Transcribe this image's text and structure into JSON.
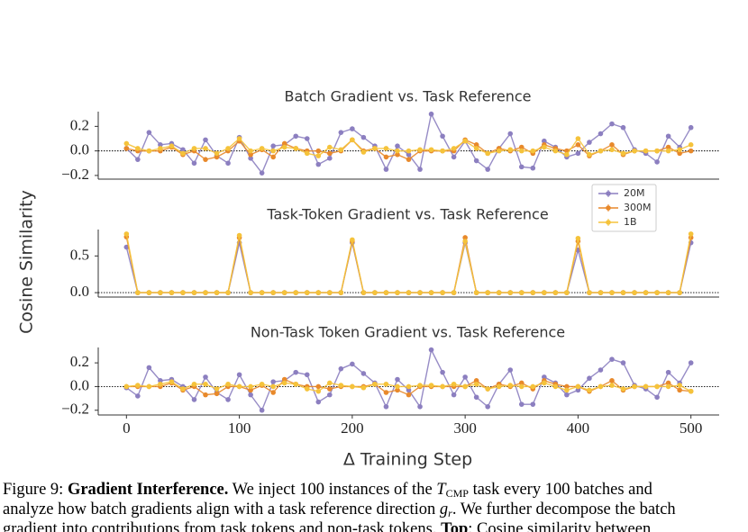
{
  "chart_data": [
    {
      "type": "line",
      "title": "Batch Gradient vs. Task Reference",
      "x": [
        0,
        10,
        20,
        30,
        40,
        50,
        60,
        70,
        80,
        90,
        100,
        110,
        120,
        130,
        140,
        150,
        160,
        170,
        180,
        190,
        200,
        210,
        220,
        230,
        240,
        250,
        260,
        270,
        280,
        290,
        300,
        310,
        320,
        330,
        340,
        350,
        360,
        370,
        380,
        390,
        400,
        410,
        420,
        430,
        440,
        450,
        460,
        470,
        480,
        490,
        500
      ],
      "series": [
        {
          "name": "20M",
          "color": "#8c7fc0",
          "values": [
            0.02,
            -0.07,
            0.15,
            0.05,
            0.06,
            0.01,
            -0.1,
            0.09,
            -0.04,
            -0.1,
            0.11,
            -0.06,
            -0.18,
            0.04,
            0.05,
            0.12,
            0.1,
            -0.11,
            -0.06,
            0.15,
            0.18,
            0.11,
            0.04,
            -0.15,
            0.04,
            -0.03,
            -0.15,
            0.3,
            0.12,
            -0.05,
            0.08,
            -0.08,
            -0.15,
            0.02,
            0.14,
            -0.13,
            -0.14,
            0.08,
            0.03,
            -0.05,
            -0.02,
            0.07,
            0.14,
            0.22,
            0.19,
            0.01,
            -0.02,
            -0.09,
            0.12,
            0.03,
            0.19
          ]
        },
        {
          "name": "300M",
          "color": "#e8892b",
          "values": [
            0.02,
            0,
            0,
            0,
            0.03,
            -0.03,
            0,
            -0.07,
            -0.05,
            0,
            0.08,
            -0.03,
            0.01,
            -0.05,
            0.06,
            0.02,
            0,
            0,
            -0.02,
            0,
            0.09,
            0,
            0.02,
            -0.05,
            -0.03,
            -0.07,
            0,
            0,
            0,
            0,
            0.09,
            0.05,
            -0.02,
            0.02,
            0,
            0.03,
            -0.02,
            0.05,
            0.02,
            0,
            0.05,
            -0.04,
            0,
            0.05,
            -0.03,
            0,
            0,
            0,
            0.03,
            -0.02,
            0
          ]
        },
        {
          "name": "1B",
          "color": "#f5c33b",
          "values": [
            0.06,
            0.02,
            0,
            0.02,
            0.04,
            -0.02,
            0.02,
            0.02,
            -0.02,
            0.02,
            0.1,
            0,
            0.02,
            0,
            0.03,
            0.02,
            -0.02,
            -0.04,
            0.03,
            0.01,
            0.09,
            -0.01,
            0.02,
            0.02,
            0,
            0,
            0.01,
            0.01,
            0,
            0.02,
            0.08,
            0.02,
            -0.02,
            0,
            0.01,
            0,
            0,
            0.03,
            0,
            -0.03,
            0.1,
            -0.03,
            0,
            0.01,
            -0.02,
            0,
            0,
            0,
            0,
            0.01,
            0.05
          ]
        }
      ],
      "xlim": [
        -25,
        525
      ],
      "ylim": [
        -0.23,
        0.32
      ],
      "yticks": [
        {
          "value": -0.2,
          "label": "−0.2"
        },
        {
          "value": 0,
          "label": "0.0"
        },
        0.2
      ],
      "reference_line": 0,
      "legend": "lower right"
    },
    {
      "type": "line",
      "title": "Task-Token Gradient vs. Task Reference",
      "ylabel": "Cosine Similarity",
      "x": [
        0,
        10,
        20,
        30,
        40,
        50,
        60,
        70,
        80,
        90,
        100,
        110,
        120,
        130,
        140,
        150,
        160,
        170,
        180,
        190,
        200,
        210,
        220,
        230,
        240,
        250,
        260,
        270,
        280,
        290,
        300,
        310,
        320,
        330,
        340,
        350,
        360,
        370,
        380,
        390,
        400,
        410,
        420,
        430,
        440,
        450,
        460,
        470,
        480,
        490,
        500
      ],
      "series": [
        {
          "name": "20M",
          "color": "#8c7fc0",
          "values": [
            0.62,
            0,
            0,
            0,
            0,
            0,
            0,
            0,
            0,
            0,
            0.68,
            0,
            0,
            0,
            0,
            0,
            0,
            0,
            0,
            0,
            0.68,
            0,
            0,
            0,
            0,
            0,
            0,
            0,
            0,
            0,
            0.68,
            0,
            0,
            0,
            0,
            0,
            0,
            0,
            0,
            0,
            0.58,
            0,
            0,
            0,
            0,
            0,
            0,
            0,
            0,
            0,
            0.68
          ]
        },
        {
          "name": "300M",
          "color": "#e8892b",
          "values": [
            0.76,
            0,
            0,
            0,
            0,
            0,
            0,
            0,
            0,
            0,
            0.75,
            0,
            0,
            0,
            0,
            0,
            0,
            0,
            0,
            0,
            0.7,
            0,
            0,
            0,
            0,
            0,
            0,
            0,
            0,
            0,
            0.75,
            0,
            0,
            0,
            0,
            0,
            0,
            0,
            0,
            0,
            0.7,
            0,
            0,
            0,
            0,
            0,
            0,
            0,
            0,
            0,
            0.75
          ]
        },
        {
          "name": "1B",
          "color": "#f5c33b",
          "values": [
            0.8,
            0,
            0,
            0,
            0,
            0,
            0,
            0,
            0,
            0,
            0.78,
            0,
            0,
            0,
            0,
            0,
            0,
            0,
            0,
            0,
            0.72,
            0,
            0,
            0,
            0,
            0,
            0,
            0,
            0,
            0,
            0.7,
            0,
            0,
            0,
            0,
            0,
            0,
            0,
            0,
            0,
            0.74,
            0,
            0,
            0,
            0,
            0,
            0,
            0,
            0,
            0,
            0.8
          ]
        }
      ],
      "xlim": [
        -25,
        525
      ],
      "ylim": [
        -0.06,
        0.86
      ],
      "yticks": [
        {
          "value": 0,
          "label": "0.0"
        },
        0.5
      ],
      "reference_line": 0
    },
    {
      "type": "line",
      "title": "Non-Task Token Gradient vs. Task Reference",
      "xlabel": "Δ Training Step",
      "x": [
        0,
        10,
        20,
        30,
        40,
        50,
        60,
        70,
        80,
        90,
        100,
        110,
        120,
        130,
        140,
        150,
        160,
        170,
        180,
        190,
        200,
        210,
        220,
        230,
        240,
        250,
        260,
        270,
        280,
        290,
        300,
        310,
        320,
        330,
        340,
        350,
        360,
        370,
        380,
        390,
        400,
        410,
        420,
        430,
        440,
        450,
        460,
        470,
        480,
        490,
        500
      ],
      "series": [
        {
          "name": "20M",
          "color": "#8c7fc0",
          "values": [
            -0.01,
            -0.08,
            0.16,
            0.05,
            0.06,
            0,
            -0.11,
            0.08,
            -0.05,
            -0.11,
            0.1,
            -0.07,
            -0.2,
            0.04,
            0.05,
            0.12,
            0.1,
            -0.13,
            -0.07,
            0.15,
            0.19,
            0.11,
            0.03,
            -0.17,
            0.06,
            -0.03,
            -0.17,
            0.31,
            0.12,
            -0.07,
            0.08,
            -0.09,
            -0.17,
            0.02,
            0.14,
            -0.15,
            -0.15,
            0.08,
            0.03,
            -0.07,
            -0.03,
            0.07,
            0.14,
            0.23,
            0.2,
            0.01,
            -0.02,
            -0.09,
            0.12,
            0.03,
            0.2
          ]
        },
        {
          "name": "300M",
          "color": "#e8892b",
          "values": [
            0,
            0,
            0,
            0,
            0.03,
            -0.03,
            0,
            -0.07,
            -0.06,
            0,
            0,
            -0.03,
            0.01,
            -0.05,
            0.06,
            0.02,
            0,
            0,
            -0.02,
            0,
            0,
            0,
            0.02,
            -0.05,
            -0.03,
            -0.07,
            0,
            0,
            0,
            0,
            0,
            0.05,
            -0.02,
            0.02,
            0,
            0.03,
            -0.02,
            0.05,
            0.02,
            0,
            0,
            -0.04,
            0,
            0.05,
            -0.03,
            0,
            0,
            0,
            0.03,
            -0.03,
            -0.04
          ]
        },
        {
          "name": "1B",
          "color": "#f5c33b",
          "values": [
            0,
            0.01,
            0,
            0.02,
            0.04,
            -0.02,
            0.02,
            0.02,
            -0.02,
            0.02,
            0,
            0,
            0.02,
            0,
            0.03,
            0.02,
            -0.02,
            -0.04,
            0.03,
            0.01,
            0,
            -0.01,
            0.02,
            0.02,
            0,
            0,
            0.01,
            0.01,
            0,
            0.02,
            0,
            0.02,
            -0.02,
            0,
            0.01,
            0,
            0,
            0.03,
            0,
            -0.03,
            0,
            -0.03,
            0,
            0.01,
            -0.02,
            0,
            0,
            0,
            0,
            0.01,
            -0.04
          ]
        }
      ],
      "xlim": [
        -25,
        525
      ],
      "ylim": [
        -0.24,
        0.33
      ],
      "xticks": [
        0,
        100,
        200,
        300,
        400,
        500
      ],
      "yticks": [
        {
          "value": -0.2,
          "label": "−0.2"
        },
        {
          "value": 0,
          "label": "0.0"
        },
        0.2
      ],
      "reference_line": 0
    }
  ],
  "caption": [
    [
      "Figure 9: ",
      "Gradient Interference.",
      " We inject 100 instances of the ",
      "T",
      "CMP",
      " task every 100 batches and"
    ],
    [
      "analyze how batch gradients align with a task reference direction ",
      "g",
      "r",
      ". We further decompose the batch"
    ],
    [
      "gradient into contributions from task tokens and non-task tokens. ",
      "Top",
      ": Cosine similarity between"
    ]
  ]
}
